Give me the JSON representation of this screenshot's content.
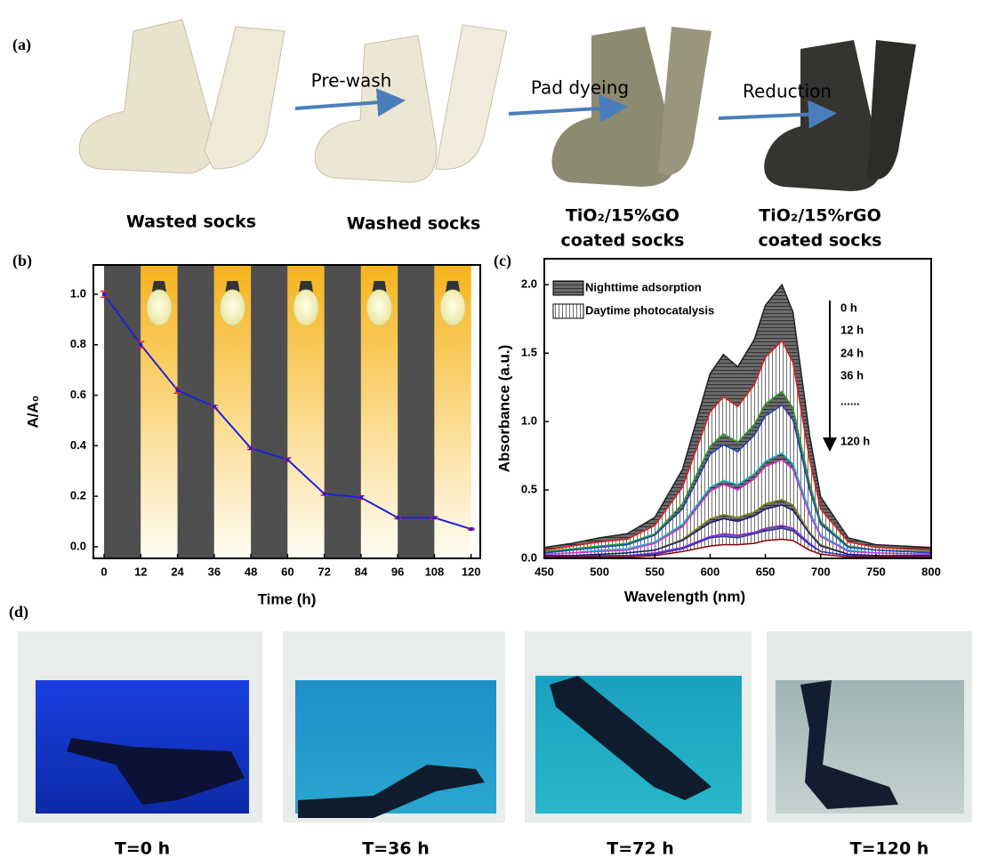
{
  "panel_a": {
    "label": "(a)",
    "steps": [
      "Pre-wash",
      "Pad dyeing",
      "Reduction"
    ],
    "captions": [
      [
        "Wasted socks"
      ],
      [
        "Washed socks"
      ],
      [
        "TiO₂/15%GO",
        "coated socks"
      ],
      [
        "TiO₂/15%rGO",
        "coated socks"
      ]
    ]
  },
  "chart_data": [
    {
      "type": "line",
      "panel_label": "(b)",
      "x_label": "Time (h)",
      "y_label": "A/A₀",
      "x": [
        0,
        12,
        24,
        36,
        48,
        60,
        72,
        84,
        96,
        108,
        120
      ],
      "values": [
        1.0,
        0.8,
        0.62,
        0.555,
        0.39,
        0.345,
        0.21,
        0.195,
        0.115,
        0.115,
        0.07
      ],
      "errors": [
        0.012,
        0.012,
        0.012,
        0.005,
        0.005,
        0.007,
        0.006,
        0.007,
        0.004,
        0.004,
        0.003
      ],
      "color": "#1f1fe0",
      "error_color": "#e02020",
      "band_colors": [
        "#4f4f4f",
        "#f6b41a"
      ],
      "xlim": [
        -3.5,
        123
      ],
      "xticks": [
        0,
        12,
        24,
        36,
        48,
        60,
        72,
        84,
        96,
        108,
        120
      ],
      "ylim": [
        -0.046,
        1.116
      ],
      "yticks": [
        {
          "value": 0,
          "label": "0.0"
        },
        0.2,
        0.4,
        0.6,
        0.8,
        {
          "value": 1,
          "label": "1.0"
        }
      ]
    },
    {
      "type": "area",
      "panel_label": "(c)",
      "x_label": "Wavelength (nm)",
      "y_label": "Absorbance (a.u.)",
      "legend": [
        "Nighttime adsorption",
        "Daytime photocatalysis"
      ],
      "annotations": [
        "0  h",
        "12 h",
        "24 h",
        "36 h",
        "......",
        "120 h"
      ],
      "x": [
        450,
        475,
        500,
        525,
        550,
        575,
        600,
        612,
        625,
        640,
        650,
        665,
        675,
        690,
        700,
        725,
        750,
        800
      ],
      "series": [
        {
          "color": "#222222",
          "values": [
            0.08,
            0.11,
            0.15,
            0.18,
            0.3,
            0.65,
            1.35,
            1.49,
            1.4,
            1.6,
            1.85,
            2.0,
            1.8,
            0.9,
            0.45,
            0.15,
            0.1,
            0.08
          ]
        },
        {
          "color": "#e41a1c",
          "values": [
            0.06,
            0.09,
            0.12,
            0.14,
            0.24,
            0.52,
            1.07,
            1.18,
            1.11,
            1.27,
            1.47,
            1.59,
            1.43,
            0.72,
            0.36,
            0.12,
            0.08,
            0.06
          ]
        },
        {
          "color": "#2ca02c",
          "values": [
            0.05,
            0.07,
            0.09,
            0.11,
            0.18,
            0.4,
            0.82,
            0.91,
            0.85,
            0.98,
            1.13,
            1.22,
            1.1,
            0.55,
            0.27,
            0.09,
            0.06,
            0.05
          ]
        },
        {
          "color": "#1f3fbf",
          "values": [
            0.04,
            0.06,
            0.08,
            0.1,
            0.17,
            0.36,
            0.76,
            0.83,
            0.78,
            0.9,
            1.04,
            1.12,
            1.01,
            0.5,
            0.25,
            0.08,
            0.06,
            0.04
          ]
        },
        {
          "color": "#17becf",
          "values": [
            0.03,
            0.04,
            0.06,
            0.07,
            0.12,
            0.25,
            0.52,
            0.57,
            0.54,
            0.62,
            0.71,
            0.77,
            0.69,
            0.35,
            0.17,
            0.06,
            0.04,
            0.03
          ]
        },
        {
          "color": "#d62fd6",
          "values": [
            0.03,
            0.04,
            0.05,
            0.06,
            0.11,
            0.23,
            0.49,
            0.54,
            0.5,
            0.58,
            0.67,
            0.72,
            0.65,
            0.32,
            0.16,
            0.05,
            0.04,
            0.03
          ]
        },
        {
          "color": "#8a8a1a",
          "values": [
            0.02,
            0.02,
            0.03,
            0.04,
            0.06,
            0.14,
            0.29,
            0.32,
            0.3,
            0.34,
            0.4,
            0.43,
            0.39,
            0.19,
            0.1,
            0.03,
            0.02,
            0.02
          ]
        },
        {
          "color": "#1a1a80",
          "values": [
            0.02,
            0.02,
            0.03,
            0.04,
            0.06,
            0.13,
            0.26,
            0.29,
            0.27,
            0.31,
            0.36,
            0.39,
            0.35,
            0.18,
            0.09,
            0.03,
            0.02,
            0.02
          ]
        },
        {
          "color": "#8b2be2",
          "values": [
            0.01,
            0.01,
            0.02,
            0.02,
            0.04,
            0.08,
            0.16,
            0.18,
            0.17,
            0.19,
            0.22,
            0.24,
            0.22,
            0.11,
            0.05,
            0.02,
            0.01,
            0.01
          ]
        },
        {
          "color": "#3333aa",
          "values": [
            0.01,
            0.01,
            0.02,
            0.02,
            0.03,
            0.07,
            0.15,
            0.16,
            0.15,
            0.18,
            0.2,
            0.22,
            0.2,
            0.1,
            0.05,
            0.02,
            0.01,
            0.01
          ]
        },
        {
          "color": "#8b0000",
          "values": [
            0.01,
            0.01,
            0.01,
            0.01,
            0.02,
            0.05,
            0.09,
            0.1,
            0.1,
            0.11,
            0.13,
            0.14,
            0.13,
            0.06,
            0.03,
            0.01,
            0.01,
            0.01
          ]
        }
      ],
      "xlim": [
        450,
        800
      ],
      "xticks": [
        450,
        500,
        550,
        600,
        650,
        700,
        750,
        800
      ],
      "ylim": [
        0,
        2.19
      ],
      "yticks": [
        {
          "value": 0,
          "label": "0.0"
        },
        0.5,
        {
          "value": 1,
          "label": "1.0"
        },
        1.5,
        {
          "value": 2,
          "label": "2.0"
        }
      ]
    }
  ],
  "panel_d": {
    "label": "(d)",
    "captions": [
      "T=0 h",
      "T=36 h",
      "T=72 h",
      "T=120 h"
    ]
  }
}
